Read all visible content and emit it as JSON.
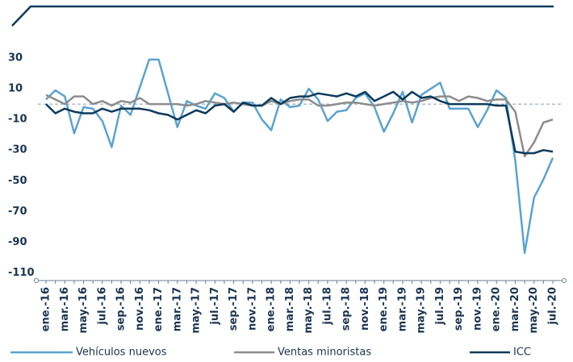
{
  "chart_data": {
    "type": "line",
    "categories": [
      "ene.-16",
      null,
      "mar.-16",
      null,
      "may.-16",
      null,
      "jul.-16",
      null,
      "sep.-16",
      null,
      "nov.-16",
      null,
      "ene.-17",
      null,
      "mar.-17",
      null,
      "may.-17",
      null,
      "jul.-17",
      null,
      "sep.-17",
      null,
      "nov.-17",
      null,
      "ene.-18",
      null,
      "mar.-18",
      null,
      "may.-18",
      null,
      "jul.-18",
      null,
      "sep.-18",
      null,
      "nov.-18",
      null,
      "ene.-19",
      null,
      "mar.-19",
      null,
      "may.-19",
      null,
      "jul.-19",
      null,
      "sep.-19",
      null,
      "nov.-19",
      null,
      "ene.-20",
      null,
      "mar.-20",
      null,
      "may.-20",
      null,
      "jul.-20"
    ],
    "series": [
      {
        "name": "Vehículos nuevos",
        "color": "#5ba3d0",
        "values": [
          3,
          9,
          5,
          -19,
          -2,
          -3,
          -11,
          -28,
          -1,
          -7,
          11,
          29,
          29,
          7,
          -15,
          2,
          -1,
          -3,
          7,
          4,
          -5,
          1,
          1,
          -10,
          -17,
          3,
          -2,
          -1,
          10,
          3,
          -11,
          -5,
          -4,
          4,
          7,
          -2,
          -18,
          -6,
          8,
          -12,
          6,
          10,
          14,
          -3,
          -3,
          -3,
          -15,
          -4,
          9,
          4,
          -37,
          -97,
          -61,
          -49,
          -35
        ]
      },
      {
        "name": "Ventas minoristas",
        "color": "#8c8c8c",
        "values": [
          6,
          3,
          0,
          5,
          5,
          0,
          2,
          -1,
          2,
          1,
          4,
          0,
          0,
          0,
          0,
          -1,
          0,
          2,
          1,
          0,
          1,
          0,
          -1,
          -1,
          2,
          0,
          2,
          3,
          3,
          -1,
          -1,
          0,
          1,
          1,
          0,
          -1,
          0,
          1,
          2,
          1,
          2,
          4,
          5,
          5,
          2,
          5,
          4,
          2,
          3,
          3,
          -5,
          -34,
          -25,
          -12,
          -10
        ]
      },
      {
        "name": "ICC",
        "color": "#0d3a5c",
        "values": [
          0,
          -6,
          -3,
          -5,
          -6,
          -6,
          -3,
          -5,
          -3,
          -3,
          -3,
          -4,
          -6,
          -7,
          -10,
          -7,
          -4,
          -6,
          -1,
          0,
          -5,
          1,
          -1,
          -1,
          4,
          0,
          4,
          5,
          5,
          7,
          6,
          5,
          7,
          5,
          8,
          2,
          5,
          8,
          3,
          8,
          4,
          5,
          2,
          0,
          0,
          0,
          0,
          0,
          -1,
          -1,
          -31,
          -32,
          -32,
          -30,
          -31
        ]
      }
    ],
    "ylim": [
      -115,
      40
    ],
    "yticks": [
      30,
      10,
      -10,
      -30,
      -50,
      -70,
      -90,
      -110
    ],
    "hline": 0
  }
}
